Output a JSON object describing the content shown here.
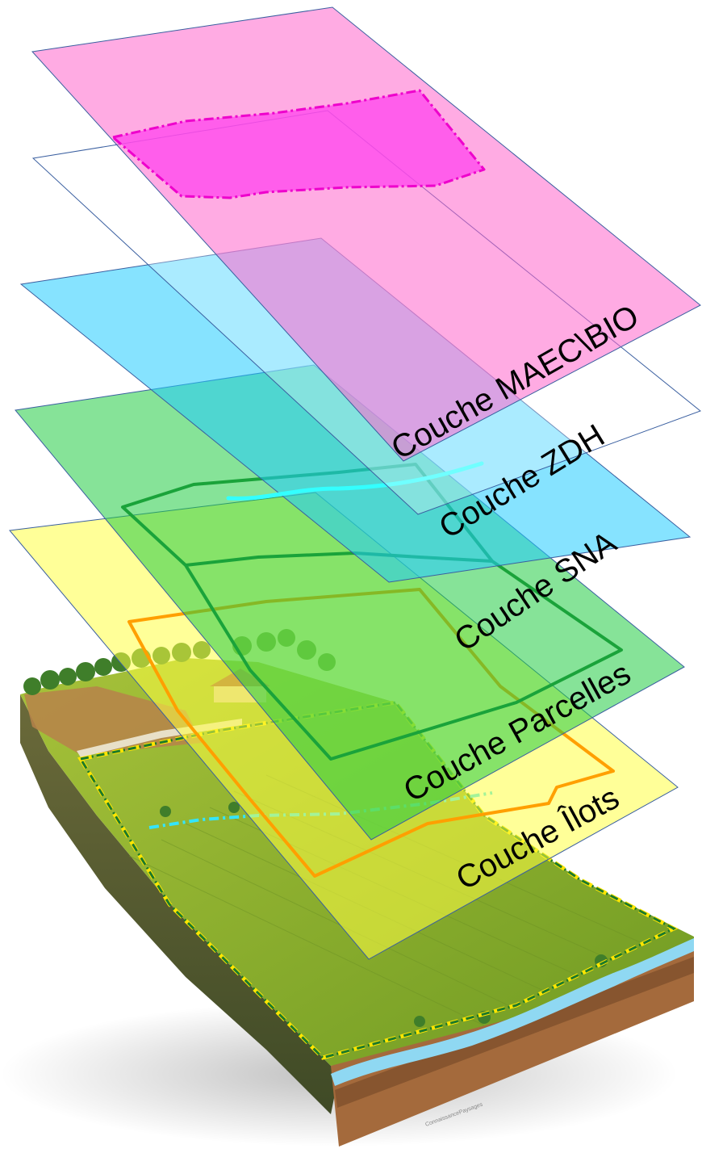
{
  "layers": [
    {
      "id": "maec-bio",
      "label": "Couche MAEC\\BIO",
      "fill": "#ff66cc",
      "stroke": "#3a5fa0"
    },
    {
      "id": "zdh",
      "label": "Couche ZDH",
      "fill": "#ffffff",
      "stroke": "#3a5fa0"
    },
    {
      "id": "sna",
      "label": "Couche SNA",
      "fill": "#22ccff",
      "stroke": "#3a5fa0"
    },
    {
      "id": "parcelles",
      "label": "Couche Parcelles",
      "fill": "#22cc44",
      "stroke": "#3a5fa0"
    },
    {
      "id": "ilots",
      "label": "Couche Îlots",
      "fill": "#ffff44",
      "stroke": "#3a5fa0"
    }
  ],
  "colors": {
    "maec_zone": "#ff33ee",
    "zdh_line": "#33ffff",
    "parcel_outline": "#11aa33",
    "ilot_outline": "#ffaa00",
    "terrain_grass": "#7fae2e",
    "terrain_soil": "#a86a3a",
    "river": "#7fd4f0"
  },
  "watermark": "ConnaissancePaysages"
}
